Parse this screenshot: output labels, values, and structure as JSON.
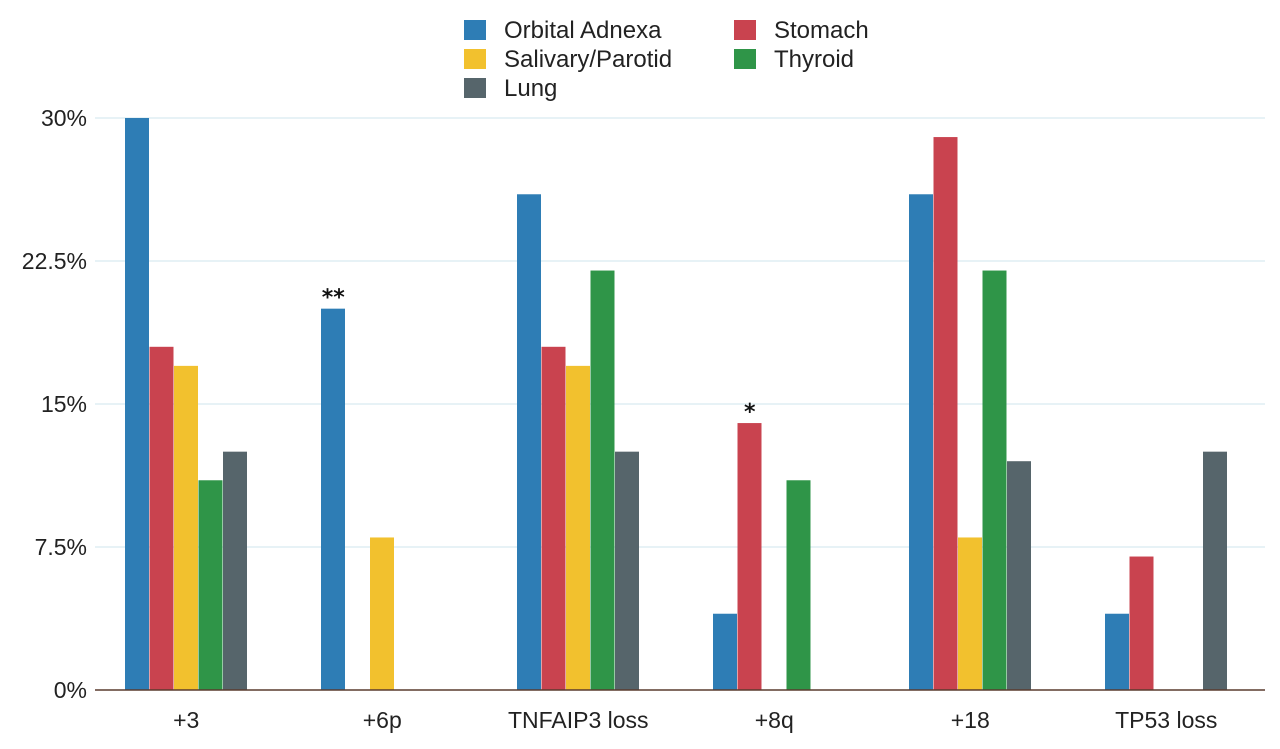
{
  "chart_data": {
    "type": "bar",
    "title": "",
    "xlabel": "",
    "ylabel": "",
    "ylim": [
      0,
      30
    ],
    "yticks": [
      0,
      7.5,
      15,
      22.5,
      30
    ],
    "ytick_labels": [
      "0%",
      "7.5%",
      "15%",
      "22.5%",
      "30%"
    ],
    "categories": [
      "+3",
      "+6p",
      "TNFAIP3 loss",
      "+8q",
      "+18",
      "TP53 loss"
    ],
    "series": [
      {
        "name": "Orbital Adnexa",
        "color": "#2e7db5",
        "values": [
          30,
          20,
          26,
          4,
          26,
          4
        ]
      },
      {
        "name": "Stomach",
        "color": "#c9434f",
        "values": [
          18,
          0,
          18,
          14,
          29,
          7
        ]
      },
      {
        "name": "Salivary/Parotid",
        "color": "#f2c12e",
        "values": [
          17,
          8,
          17,
          0,
          8,
          0
        ]
      },
      {
        "name": "Thyroid",
        "color": "#2f9548",
        "values": [
          11,
          0,
          22,
          11,
          22,
          0
        ]
      },
      {
        "name": "Lung",
        "color": "#56656b",
        "values": [
          12.5,
          0,
          12.5,
          0,
          12,
          12.5
        ]
      }
    ],
    "legend": {
      "placement": "top-center",
      "columns": 2
    },
    "grid": true,
    "annotations": [
      {
        "text": "**",
        "category": "+6p",
        "series": "Orbital Adnexa"
      },
      {
        "text": "*",
        "category": "+8q",
        "series": "Stomach"
      }
    ]
  }
}
